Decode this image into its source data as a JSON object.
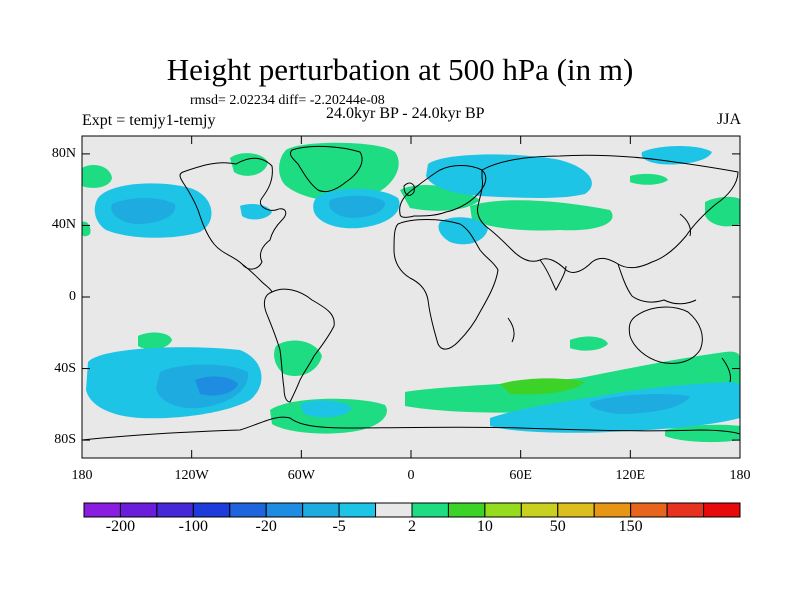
{
  "title": "Height perturbation at 500 hPa (in m)",
  "stats": "rmsd= 2.02234 diff= -2.20244e-08",
  "expt": "Expt = temjy1-temjy",
  "period": "24.0kyr BP - 24.0kyr BP",
  "season": "JJA",
  "map": {
    "lon_range": [
      -180,
      180
    ],
    "lat_range": [
      -90,
      90
    ],
    "lat_ticks": [
      {
        "value": 80,
        "label": "80N"
      },
      {
        "value": 40,
        "label": "40N"
      },
      {
        "value": 0,
        "label": "0"
      },
      {
        "value": -40,
        "label": "40S"
      },
      {
        "value": -80,
        "label": "80S"
      }
    ],
    "lon_ticks": [
      {
        "value": -180,
        "label": "180"
      },
      {
        "value": -120,
        "label": "120W"
      },
      {
        "value": -60,
        "label": "60W"
      },
      {
        "value": 0,
        "label": "0"
      },
      {
        "value": 60,
        "label": "60E"
      },
      {
        "value": 120,
        "label": "120E"
      },
      {
        "value": 180,
        "label": "180"
      }
    ],
    "background_color": "#e8e8e8",
    "coast_color": "#000000"
  },
  "colorbar": {
    "colors": [
      "#8a1ee0",
      "#6a1edc",
      "#4628d8",
      "#1e3cdc",
      "#1e64dc",
      "#1e8ce0",
      "#1eace0",
      "#1ec4e6",
      "#e8e8e8",
      "#1edc82",
      "#3cd228",
      "#96dc1e",
      "#c8d21e",
      "#dcbe1e",
      "#e69614",
      "#e6641e",
      "#e6321e",
      "#e60a0a"
    ],
    "labels": [
      {
        "text": "-200",
        "boundary": 1
      },
      {
        "text": "-100",
        "boundary": 3
      },
      {
        "text": "-20",
        "boundary": 5
      },
      {
        "text": "-5",
        "boundary": 7
      },
      {
        "text": "2",
        "boundary": 9
      },
      {
        "text": "10",
        "boundary": 11
      },
      {
        "text": "50",
        "boundary": 13
      },
      {
        "text": "150",
        "boundary": 15
      }
    ]
  }
}
